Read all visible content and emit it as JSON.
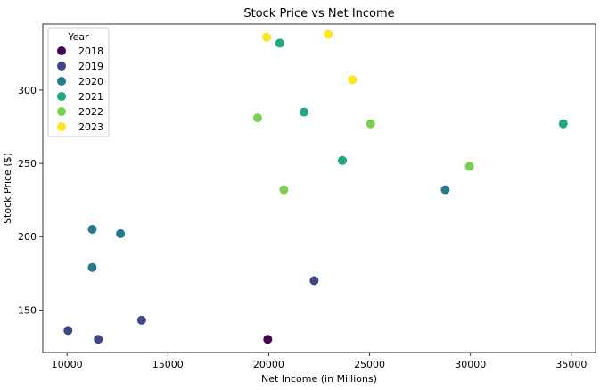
{
  "chart_data": {
    "type": "scatter",
    "title": "Stock Price vs Net Income",
    "xlabel": "Net Income (in Millions)",
    "ylabel": "Stock Price ($)",
    "xlim": [
      8800,
      36200
    ],
    "ylim": [
      121,
      345
    ],
    "xticks": [
      10000,
      15000,
      20000,
      25000,
      30000,
      35000
    ],
    "yticks": [
      150,
      200,
      250,
      300
    ],
    "grid": false,
    "legend": {
      "title": "Year",
      "placement": "top-left"
    },
    "series": [
      {
        "name": "2018",
        "color": "#440154",
        "points": [
          {
            "x": 19950,
            "y": 130
          }
        ]
      },
      {
        "name": "2019",
        "color": "#414487",
        "points": [
          {
            "x": 10050,
            "y": 136
          },
          {
            "x": 11550,
            "y": 130
          },
          {
            "x": 13700,
            "y": 143
          },
          {
            "x": 22250,
            "y": 170
          }
        ]
      },
      {
        "name": "2020",
        "color": "#2a788e",
        "points": [
          {
            "x": 11250,
            "y": 205
          },
          {
            "x": 11250,
            "y": 179
          },
          {
            "x": 12650,
            "y": 202
          },
          {
            "x": 28750,
            "y": 232
          }
        ]
      },
      {
        "name": "2021",
        "color": "#22a884",
        "points": [
          {
            "x": 20550,
            "y": 332
          },
          {
            "x": 21750,
            "y": 285
          },
          {
            "x": 23650,
            "y": 252
          },
          {
            "x": 34600,
            "y": 277
          }
        ]
      },
      {
        "name": "2022",
        "color": "#7ad151",
        "points": [
          {
            "x": 19450,
            "y": 281
          },
          {
            "x": 20750,
            "y": 232
          },
          {
            "x": 25050,
            "y": 277
          },
          {
            "x": 29950,
            "y": 248
          }
        ]
      },
      {
        "name": "2023",
        "color": "#fde725",
        "points": [
          {
            "x": 19900,
            "y": 336
          },
          {
            "x": 22950,
            "y": 338
          },
          {
            "x": 24150,
            "y": 307
          }
        ]
      }
    ]
  }
}
